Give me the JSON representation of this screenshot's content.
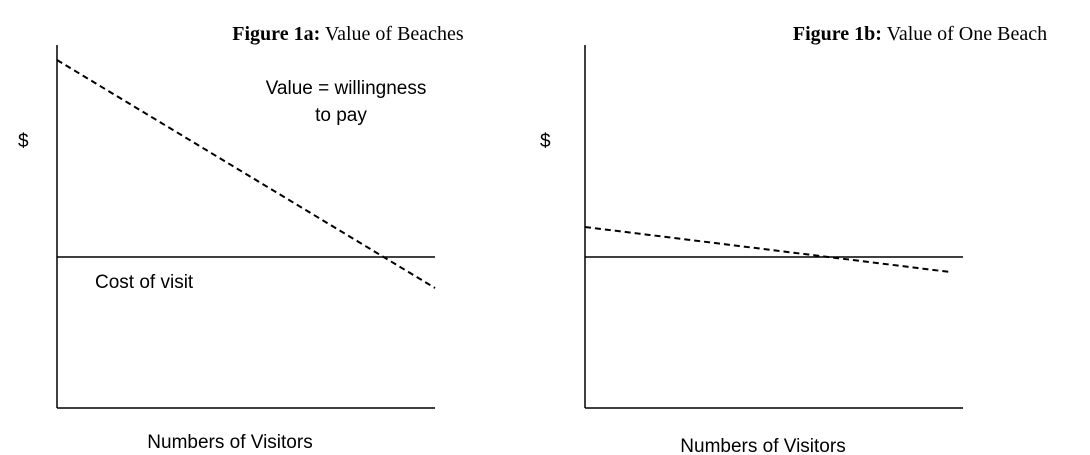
{
  "figures": [
    {
      "title_bold": "Figure 1a:",
      "title": "Value of Beaches",
      "y_label": "$",
      "x_label": "Numbers of Visitors",
      "curve_label": [
        "Value = willingness",
        "to pay"
      ],
      "line_label": "Cost of visit"
    },
    {
      "title_bold": "Figure 1b:",
      "title": "Value of One Beach",
      "y_label": "$",
      "x_label": "Numbers of Visitors"
    }
  ]
}
